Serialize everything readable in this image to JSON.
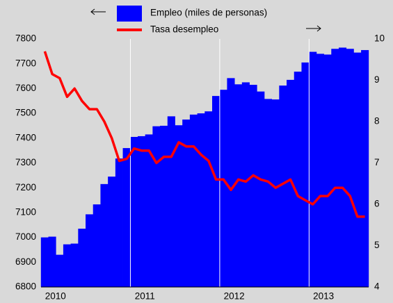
{
  "chart_data": {
    "type": "bar_line",
    "categories": [
      null,
      null,
      "2010",
      null,
      null,
      null,
      null,
      null,
      null,
      null,
      null,
      null,
      null,
      null,
      "2011",
      null,
      null,
      null,
      null,
      null,
      null,
      null,
      null,
      null,
      null,
      null,
      "2012",
      null,
      null,
      null,
      null,
      null,
      null,
      null,
      null,
      null,
      null,
      null,
      "2013",
      null,
      null,
      null,
      null,
      null
    ],
    "series": [
      {
        "name": "Empleo (miles de personas)",
        "color": "#0000ff",
        "kind": "bar",
        "axis": "y",
        "values": [
          7000,
          7003,
          6930,
          6972,
          6975,
          7035,
          7093,
          7133,
          7215,
          7245,
          7318,
          7360,
          7405,
          7408,
          7415,
          7448,
          7450,
          7488,
          7452,
          7475,
          7495,
          7500,
          7508,
          7570,
          7595,
          7642,
          7617,
          7625,
          7615,
          7588,
          7558,
          7556,
          7612,
          7635,
          7668,
          7705,
          7748,
          7740,
          7737,
          7760,
          7765,
          7760,
          7745,
          7755
        ]
      },
      {
        "name": "Tasa desempleo",
        "color": "#ff0000",
        "kind": "line",
        "axis": "y2",
        "values": [
          9.7,
          9.15,
          9.05,
          8.6,
          8.8,
          8.5,
          8.3,
          8.3,
          8.0,
          7.6,
          7.05,
          7.1,
          7.35,
          7.3,
          7.3,
          7.0,
          7.15,
          7.15,
          7.5,
          7.4,
          7.4,
          7.2,
          7.05,
          6.6,
          6.6,
          6.35,
          6.6,
          6.55,
          6.7,
          6.6,
          6.55,
          6.4,
          6.5,
          6.6,
          6.2,
          6.1,
          6.0,
          6.2,
          6.2,
          6.4,
          6.4,
          6.2,
          5.7,
          5.7
        ]
      }
    ],
    "ylim": [
      6800,
      7800
    ],
    "yticks": [
      6800,
      6900,
      7000,
      7100,
      7200,
      7300,
      7400,
      7500,
      7600,
      7700,
      7800
    ],
    "y2lim": [
      4,
      10
    ],
    "y2ticks": [
      4,
      5,
      6,
      7,
      8,
      9,
      10
    ]
  }
}
